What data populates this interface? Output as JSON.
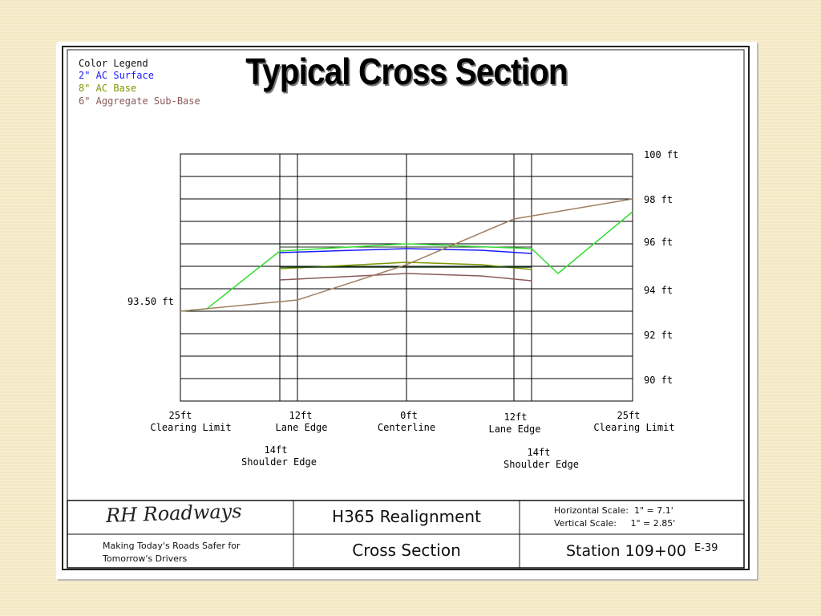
{
  "slide_title": "Typical Cross Section",
  "legend": {
    "title": "Color Legend",
    "items": [
      {
        "label": "2\" AC Surface",
        "color": "#1a1aff"
      },
      {
        "label": "8\" AC Base",
        "color": "#7a9a00"
      },
      {
        "label": "6\" Aggregate Sub-Base",
        "color": "#8a5a5a"
      }
    ]
  },
  "elevation_labels": [
    "100 ft",
    "98 ft",
    "96 ft",
    "94 ft",
    "92 ft",
    "90 ft"
  ],
  "ground_elevation_label": "93.50 ft",
  "offset_labels": [
    {
      "line1": "25ft",
      "line2": "Clearing Limit"
    },
    {
      "line1": "12ft",
      "line2": "Lane Edge"
    },
    {
      "line1": "0ft",
      "line2": "Centerline"
    },
    {
      "line1": "12ft",
      "line2": "Lane Edge"
    },
    {
      "line1": "25ft",
      "line2": "Clearing Limit"
    }
  ],
  "shoulder_labels": [
    {
      "line1": "14ft",
      "line2": "Shoulder Edge"
    },
    {
      "line1": "14ft",
      "line2": "Shoulder Edge"
    }
  ],
  "title_block": {
    "company": "RH Roadways",
    "tagline_line1": "Making Today's Roads Safer for",
    "tagline_line2": "Tomorrow's Drivers",
    "project": "H365 Realignment",
    "drawing": "Cross Section",
    "horizontal_scale": "Horizontal Scale:  1\" = 7.1'",
    "vertical_scale": "Vertical Scale:     1\" = 2.85'",
    "station": "Station 109+00",
    "sheet": "E-39"
  },
  "colors": {
    "finished_grade": "#33dd33",
    "existing_ground": "#a08060",
    "ac_surface": "#1a1aff",
    "ac_base": "#7a9a00",
    "sub_base": "#8a5a5a"
  }
}
